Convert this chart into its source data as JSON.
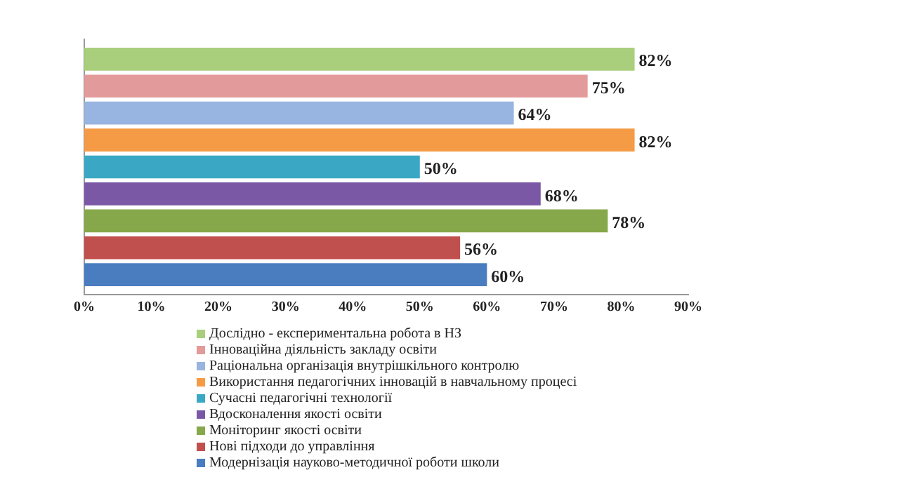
{
  "chart_data": {
    "type": "bar",
    "orientation": "horizontal",
    "categories": [
      null
    ],
    "series": [
      {
        "name": "Дослідно - експериментальна робота в НЗ",
        "color": "#a9cf7c",
        "values": [
          82
        ],
        "value_labels": [
          "82%"
        ]
      },
      {
        "name": "Інноваційна діяльність закладу освіти",
        "color": "#e39a9a",
        "values": [
          75
        ],
        "value_labels": [
          "75%"
        ]
      },
      {
        "name": "Раціональна організація внутрішкільного контролю",
        "color": "#98b4e0",
        "values": [
          64
        ],
        "value_labels": [
          "64%"
        ]
      },
      {
        "name": "Використання педагогічних інновацій в навчальному процесі",
        "color": "#f59b45",
        "values": [
          82
        ],
        "value_labels": [
          "82%"
        ]
      },
      {
        "name": "Сучасні педагогічні технології",
        "color": "#3aa8c4",
        "values": [
          50
        ],
        "value_labels": [
          "50%"
        ]
      },
      {
        "name": "Вдосконалення якості освіти",
        "color": "#7a58a6",
        "values": [
          68
        ],
        "value_labels": [
          "68%"
        ]
      },
      {
        "name": "Моніторинг якості освіти",
        "color": "#87a84a",
        "values": [
          78
        ],
        "value_labels": [
          "78%"
        ]
      },
      {
        "name": "Нові підходи до управління",
        "color": "#c0504d",
        "values": [
          56
        ],
        "value_labels": [
          "56%"
        ]
      },
      {
        "name": "Модернізація науково-методичної роботи школи",
        "color": "#4a7cc0",
        "values": [
          60
        ],
        "value_labels": [
          "60%"
        ]
      }
    ],
    "xlim": [
      0,
      90
    ],
    "xticks": [
      {
        "value": 0,
        "label": "0%"
      },
      {
        "value": 10,
        "label": "10%"
      },
      {
        "value": 20,
        "label": "20%"
      },
      {
        "value": 30,
        "label": "30%"
      },
      {
        "value": 40,
        "label": "40%"
      },
      {
        "value": 50,
        "label": "50%"
      },
      {
        "value": 60,
        "label": "60%"
      },
      {
        "value": 70,
        "label": "70%"
      },
      {
        "value": 80,
        "label": "80%"
      },
      {
        "value": 90,
        "label": "90%"
      }
    ],
    "grid": false,
    "legend": "bottom"
  }
}
